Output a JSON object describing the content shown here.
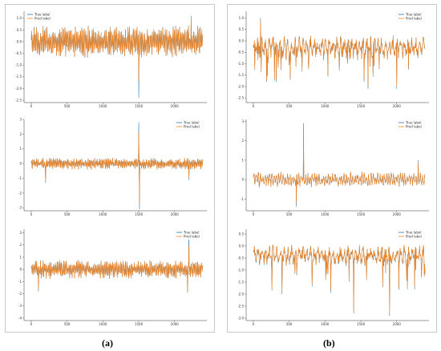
{
  "colors": {
    "true_label": "#1f77b4",
    "pred_label": "#ff7f0e",
    "frame": "#c9c9c9"
  },
  "labels": {
    "a": "(a)",
    "b": "(b)"
  },
  "chart_data": [
    {
      "id": "a1",
      "type": "line",
      "series": [
        {
          "name": "True label"
        },
        {
          "name": "Pred label"
        }
      ],
      "legend": "top-left",
      "ylim": [
        -2.6,
        1.3
      ],
      "yticks": [
        "1.0",
        "0.5",
        "0.0",
        "-0.5",
        "-1.0",
        "-1.5",
        "-2.0",
        "-2.5"
      ],
      "xlim": [
        -100,
        2450
      ],
      "xticks": [
        "0",
        "500",
        "1000",
        "1500",
        "2000"
      ],
      "n": 2400,
      "pattern": "oscillating",
      "baseline": 0.0,
      "amp": 0.45,
      "noise": 0.25,
      "spikes": [
        {
          "x": 1500,
          "true": -2.4,
          "pred": -1.7
        },
        {
          "x": 2230,
          "true": 1.1,
          "pred": 1.0
        }
      ]
    },
    {
      "id": "b1",
      "type": "line",
      "series": [
        {
          "name": "True label"
        },
        {
          "name": "Pred label"
        }
      ],
      "legend": "top-right",
      "ylim": [
        -2.7,
        1.3
      ],
      "yticks": [
        "1.0",
        "0.5",
        "0.0",
        "-0.5",
        "-1.0",
        "-1.5",
        "-2.0",
        "-2.5"
      ],
      "xlim": [
        -100,
        2450
      ],
      "xticks": [
        "0",
        "500",
        "1000",
        "1500",
        "2000"
      ],
      "n": 2400,
      "pattern": "baseline_dips",
      "baseline": -0.3,
      "amp": 0.25,
      "noise": 0.3,
      "spikes": [
        {
          "x": 100,
          "true": 1.0,
          "pred": 0.9
        },
        {
          "x": 1600,
          "true": -2.1,
          "pred": -2.0
        },
        {
          "x": 2000,
          "true": -2.1,
          "pred": -2.0
        },
        {
          "x": 2400,
          "true": 0.6,
          "pred": 0.6
        }
      ]
    },
    {
      "id": "a2",
      "type": "line",
      "series": [
        {
          "name": "True label"
        },
        {
          "name": "Pred label"
        }
      ],
      "legend": "top-right",
      "ylim": [
        -3.2,
        3.0
      ],
      "yticks": [
        "3",
        "2",
        "1",
        "0",
        "-1",
        "-2",
        "-3"
      ],
      "xlim": [
        -100,
        2450
      ],
      "xticks": [
        "0",
        "500",
        "1000",
        "1500",
        "2000"
      ],
      "n": 2400,
      "pattern": "oscillating",
      "baseline": 0.0,
      "amp": 0.25,
      "noise": 0.15,
      "spikes": [
        {
          "x": 200,
          "true": -1.3,
          "pred": -1.2
        },
        {
          "x": 1500,
          "true": 2.8,
          "pred": 2.2
        },
        {
          "x": 1510,
          "true": -3.1,
          "pred": -2.7
        },
        {
          "x": 2200,
          "true": -1.1,
          "pred": -1.0
        }
      ]
    },
    {
      "id": "b2",
      "type": "line",
      "series": [
        {
          "name": "True label"
        },
        {
          "name": "Pred label"
        }
      ],
      "legend": "top-right",
      "ylim": [
        -1.6,
        3.1
      ],
      "yticks": [
        "3",
        "2",
        "1",
        "0",
        "-1"
      ],
      "xlim": [
        -100,
        2450
      ],
      "xticks": [
        "0",
        "500",
        "1000",
        "1500",
        "2000"
      ],
      "n": 2400,
      "pattern": "decaying",
      "baseline": 0.0,
      "amp": 0.2,
      "noise": 0.2,
      "spikes": [
        {
          "x": 600,
          "true": -1.4,
          "pred": -1.2
        },
        {
          "x": 700,
          "true": 2.9,
          "pred": 2.5
        },
        {
          "x": 2300,
          "true": 1.0,
          "pred": 0.9
        }
      ]
    },
    {
      "id": "a3",
      "type": "line",
      "series": [
        {
          "name": "True label"
        },
        {
          "name": "Pred label"
        }
      ],
      "legend": "top-right",
      "ylim": [
        -4.2,
        3.3
      ],
      "yticks": [
        "3",
        "2",
        "1",
        "0",
        "-1",
        "-2",
        "-3",
        "-4"
      ],
      "xlim": [
        -100,
        2450
      ],
      "xticks": [
        "0",
        "500",
        "1000",
        "1500",
        "2000"
      ],
      "n": 2400,
      "pattern": "oscillating",
      "baseline": 0.0,
      "amp": 0.5,
      "noise": 0.3,
      "spikes": [
        {
          "x": 100,
          "true": -1.8,
          "pred": -1.7
        },
        {
          "x": 2200,
          "true": 3.1,
          "pred": 2.0
        },
        {
          "x": 2180,
          "true": -1.9,
          "pred": -1.8
        }
      ]
    },
    {
      "id": "b3",
      "type": "line",
      "series": [
        {
          "name": "True label"
        },
        {
          "name": "Pred label"
        }
      ],
      "legend": "top-right",
      "ylim": [
        -3.1,
        0.7
      ],
      "yticks": [
        "0.5",
        "0.0",
        "-0.5",
        "-1.0",
        "-1.5",
        "-2.0",
        "-2.5",
        "-3.0"
      ],
      "xlim": [
        -100,
        2450
      ],
      "xticks": [
        "0",
        "500",
        "1000",
        "1500",
        "2000"
      ],
      "n": 2400,
      "pattern": "baseline_dips",
      "baseline": -0.4,
      "amp": 0.2,
      "noise": 0.25,
      "spikes": [
        {
          "x": 400,
          "true": -2.0,
          "pred": -1.9
        },
        {
          "x": 1400,
          "true": -2.8,
          "pred": -2.7
        },
        {
          "x": 1900,
          "true": -2.9,
          "pred": -2.8
        },
        {
          "x": 2250,
          "true": -1.8,
          "pred": -1.7
        }
      ]
    }
  ]
}
